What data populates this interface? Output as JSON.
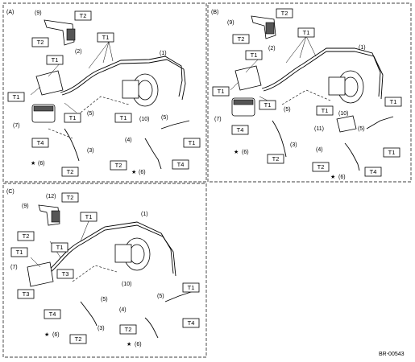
{
  "panels": {
    "a": "(A)",
    "b": "(B)",
    "c": "(C)"
  },
  "torque_labels": {
    "t1": "T1",
    "t2": "T2",
    "t3": "T3",
    "t4": "T4"
  },
  "callouts": {
    "p1": "(1)",
    "p2": "(2)",
    "p3": "(3)",
    "p4": "(4)",
    "p5": "(5)",
    "p6": "(6)",
    "p7": "(7)",
    "p9": "(9)",
    "p10": "(10)",
    "p11": "(11)",
    "p12": "(12)"
  },
  "star_symbol": "★",
  "figure_id": "BR-00543"
}
